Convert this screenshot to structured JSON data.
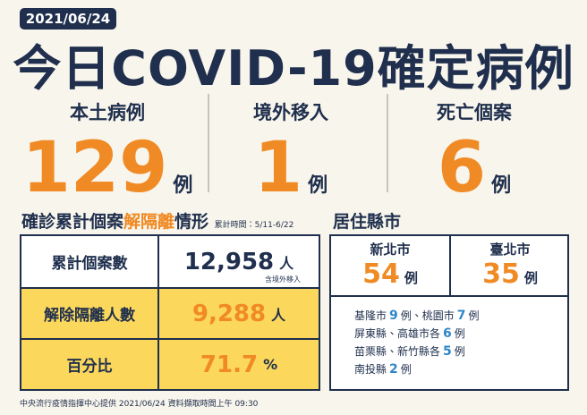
{
  "header": {
    "date": "2021/06/24",
    "title": "今日COVID-19確定病例"
  },
  "stats": [
    {
      "label": "本土病例",
      "value": 129,
      "unit": "例"
    },
    {
      "label": "境外移入",
      "value": 1,
      "unit": "例"
    },
    {
      "label": "死亡個案",
      "value": 6,
      "unit": "例"
    }
  ],
  "cumulative": {
    "title_parts": [
      "確診累計個案",
      "解隔離",
      "情形"
    ],
    "period": "累計時間：5/11-6/22",
    "rows": [
      {
        "label": "累計個案數",
        "value": "12,958",
        "unit": "人",
        "note": "含境外移入"
      },
      {
        "label": "解除隔離人數",
        "value": "9,288",
        "unit": "人"
      },
      {
        "label": "百分比",
        "value": 71.7,
        "unit": "%"
      }
    ]
  },
  "counties": {
    "title": "居住縣市",
    "main": [
      {
        "name": "新北市",
        "value": 54,
        "unit": "例"
      },
      {
        "name": "臺北市",
        "value": 35,
        "unit": "例"
      }
    ],
    "others": [
      [
        "基隆市",
        9,
        "例、桃園市",
        7,
        "例"
      ],
      [
        "屏東縣、高雄市各",
        6,
        "例"
      ],
      [
        "苗栗縣、新竹縣各",
        5,
        "例"
      ],
      [
        "南投縣",
        2,
        "例"
      ]
    ]
  },
  "footer": "中央流行疫情指揮中心提供 2021/06/24 資料擷取時間上午 09:30"
}
